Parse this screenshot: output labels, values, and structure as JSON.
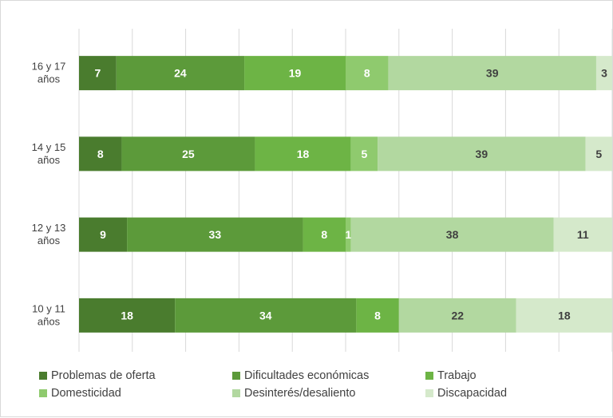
{
  "chart_data": {
    "type": "bar",
    "orientation": "horizontal",
    "stacked": true,
    "percent": true,
    "categories": [
      [
        "16 y 17",
        "años"
      ],
      [
        "14 y 15",
        "años"
      ],
      [
        "12 y 13",
        "años"
      ],
      [
        "10 y 11",
        "años"
      ]
    ],
    "series": [
      {
        "name": "Problemas de oferta",
        "color": "#4a7c2e",
        "label_color": "#ffffff",
        "values": [
          7,
          8,
          9,
          18
        ]
      },
      {
        "name": "Dificultades económicas",
        "color": "#5c9a3a",
        "label_color": "#ffffff",
        "values": [
          24,
          25,
          33,
          34
        ]
      },
      {
        "name": "Trabajo",
        "color": "#6db445",
        "label_color": "#ffffff",
        "values": [
          19,
          18,
          8,
          8
        ]
      },
      {
        "name": "Domesticidad",
        "color": "#8fca6e",
        "label_color": "#ffffff",
        "values": [
          8,
          5,
          1,
          0
        ]
      },
      {
        "name": "Desinterés/desaliento",
        "color": "#b2d8a0",
        "label_color": "#404040",
        "values": [
          39,
          39,
          38,
          22
        ]
      },
      {
        "name": "Discapacidad",
        "color": "#d5e9cb",
        "label_color": "#404040",
        "values": [
          3,
          5,
          11,
          18
        ]
      }
    ],
    "xlim": [
      0,
      100
    ],
    "grid": true,
    "gridline_count": 10,
    "legend_position": "bottom"
  }
}
